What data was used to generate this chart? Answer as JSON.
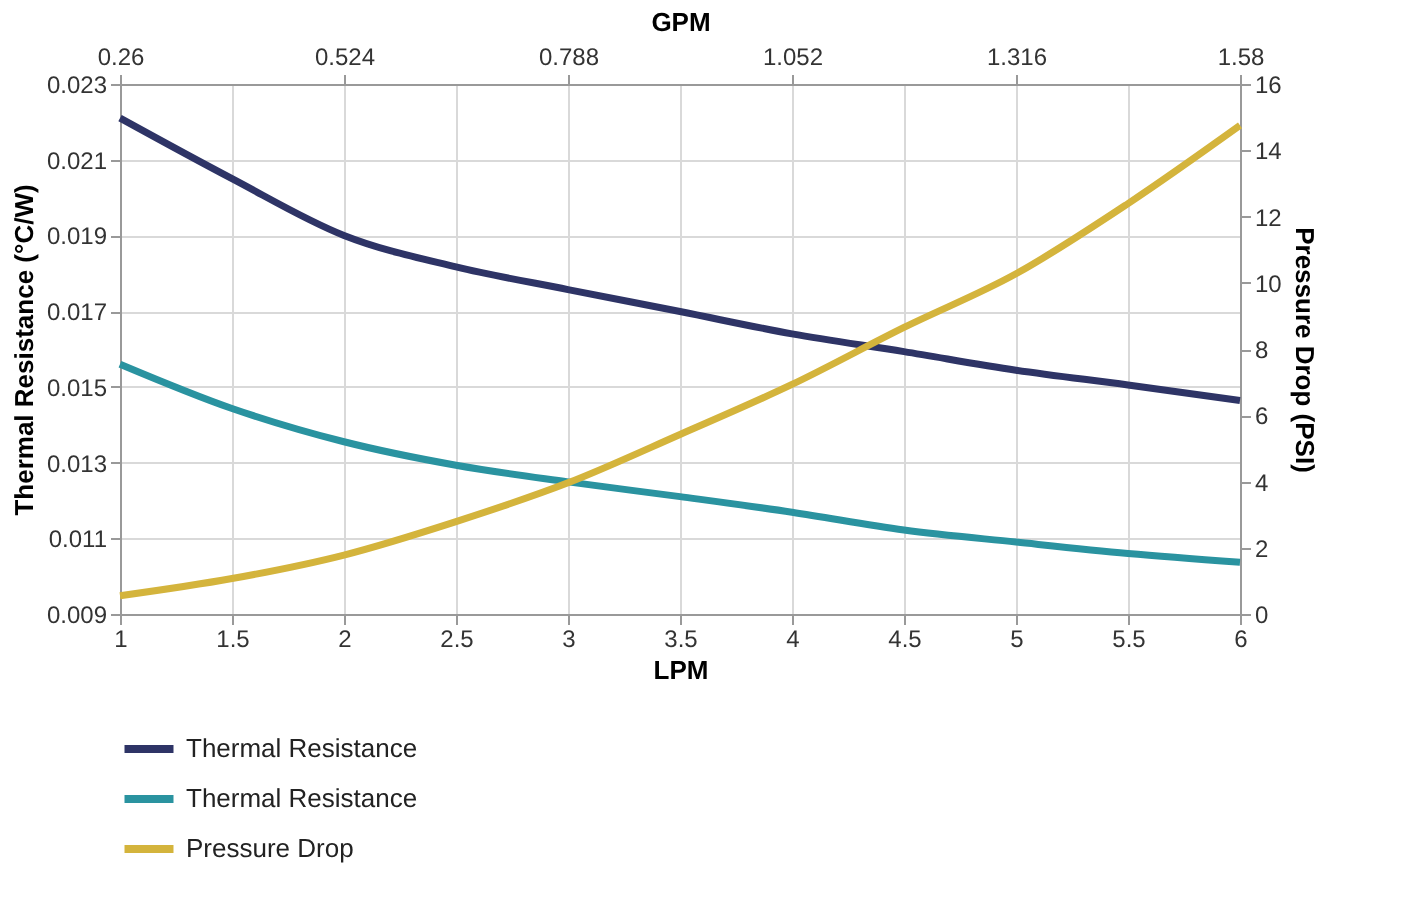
{
  "chart_data": {
    "type": "line",
    "xlabel": "LPM",
    "ylabel": "Thermal Resistance (°C/W)",
    "y2label": "Pressure Drop (PSI)",
    "x2label": "GPM",
    "x": [
      1,
      1.5,
      2,
      2.5,
      3,
      3.5,
      4,
      4.5,
      5,
      5.5,
      6
    ],
    "xlim": [
      1,
      6
    ],
    "xticks": [
      1,
      1.5,
      2,
      2.5,
      3,
      3.5,
      4,
      4.5,
      5,
      5.5,
      6
    ],
    "ylim": [
      0.009,
      0.023
    ],
    "yticks": [
      0.009,
      0.011,
      0.013,
      0.015,
      0.017,
      0.019,
      0.021,
      0.023
    ],
    "y2lim": [
      0,
      16
    ],
    "y2ticks": [
      0,
      2,
      4,
      6,
      8,
      10,
      12,
      14,
      16
    ],
    "x2lim": [
      0.26,
      1.58
    ],
    "x2ticks": [
      0.26,
      0.524,
      0.788,
      1.052,
      1.316,
      1.58
    ],
    "grid": true,
    "legend": "bottom",
    "marker": "none",
    "line_style": "solid",
    "series": [
      {
        "name": "Thermal Resistance",
        "color": "#2e3466",
        "values": [
          0.0221,
          0.0205,
          0.019,
          0.01817,
          0.01757,
          0.01699,
          0.0164,
          0.01593,
          0.01544,
          0.01505,
          0.01464
        ]
      },
      {
        "name": "Thermal Resistance",
        "color": "#2a93a0",
        "values": [
          0.0156,
          0.01443,
          0.01355,
          0.01293,
          0.01249,
          0.0121,
          0.01169,
          0.01122,
          0.0109,
          0.0106,
          0.01037
        ]
      },
      {
        "name": "Pressure Drop",
        "color": "#d4b43c",
        "axis": "y2",
        "values": [
          0.55,
          1.07,
          1.78,
          2.79,
          3.96,
          5.42,
          6.93,
          8.65,
          10.27,
          12.39,
          14.75
        ]
      }
    ]
  }
}
